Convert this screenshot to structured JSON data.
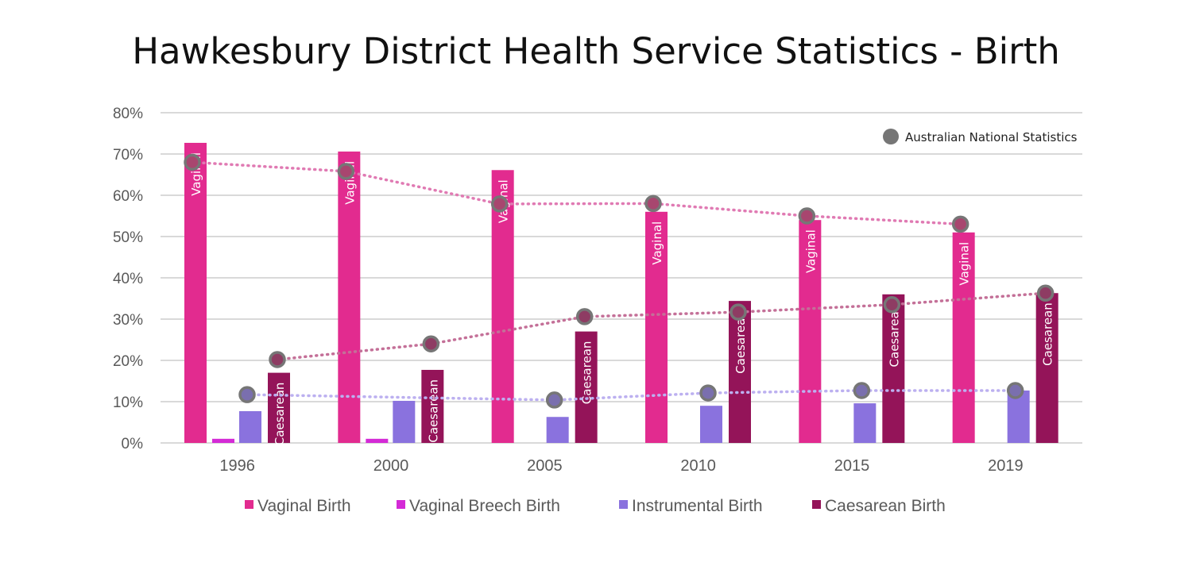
{
  "chart_data": {
    "type": "bar",
    "title": "Hawkesbury District Health Service Statistics - Birth",
    "xlabel": "",
    "ylabel": "",
    "ylim": [
      0,
      80
    ],
    "yticks": [
      "0%",
      "10%",
      "20%",
      "30%",
      "40%",
      "50%",
      "60%",
      "70%",
      "80%"
    ],
    "grid": true,
    "categories": [
      "1996",
      "2000",
      "2005",
      "2010",
      "2015",
      "2019"
    ],
    "series": [
      {
        "name": "Vaginal Birth",
        "color": "#e22b8f",
        "bar_label": "Vaginal",
        "values": [
          72.7,
          70.6,
          66.1,
          56.0,
          54.0,
          51.0
        ]
      },
      {
        "name": "Vaginal Breech Birth",
        "color": "#d42ad6",
        "bar_label": "",
        "values": [
          1.0,
          1.0,
          0,
          0,
          0,
          0
        ]
      },
      {
        "name": "Instrumental Birth",
        "color": "#8a72de",
        "bar_label": "",
        "values": [
          7.7,
          10.2,
          6.3,
          9.0,
          9.6,
          12.7
        ]
      },
      {
        "name": "Caesarean Birth",
        "color": "#941459",
        "bar_label": "Caesarean",
        "values": [
          17.0,
          17.7,
          27.0,
          34.4,
          36.0,
          36.3
        ]
      }
    ],
    "overlay": {
      "name": "Australian National Statistics",
      "marker_color": "#767676",
      "legend_placement": "top-right",
      "lines": [
        {
          "series": "Vaginal Birth",
          "color": "#e07ab3",
          "fill": "#a8466f",
          "values": [
            68.0,
            65.8,
            57.9,
            58.0,
            55.0,
            53.0
          ]
        },
        {
          "series": "Instrumental Birth",
          "color": "#bcb0f0",
          "fill": "#7a6fae",
          "values": [
            11.7,
            null,
            10.4,
            12.1,
            12.7,
            12.7
          ]
        },
        {
          "series": "Caesarean Birth",
          "color": "#c47098",
          "fill": "#8e3c63",
          "values": [
            20.2,
            24.0,
            30.6,
            31.7,
            33.5,
            36.3
          ]
        }
      ]
    },
    "legend_placement": "bottom"
  }
}
